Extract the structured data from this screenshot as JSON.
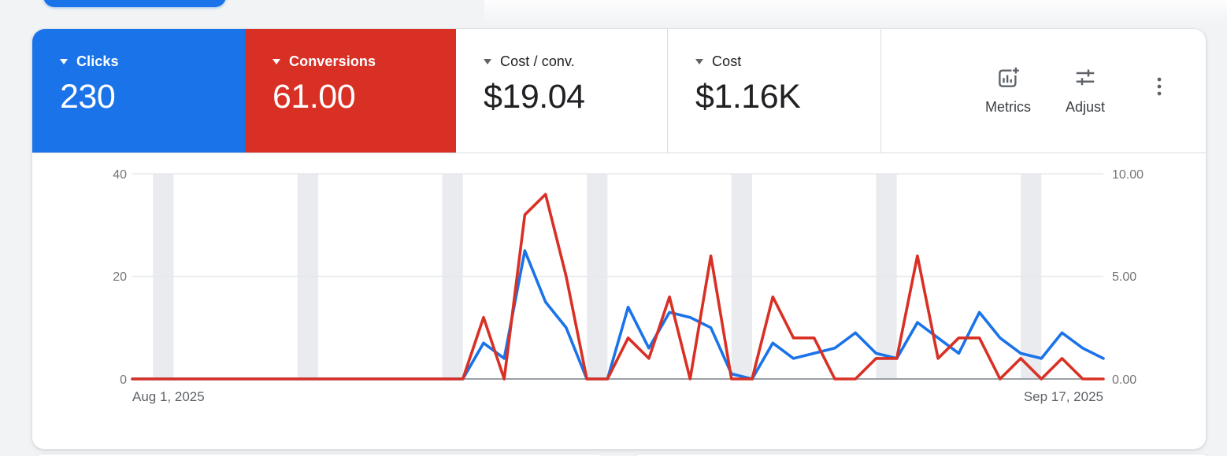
{
  "colors": {
    "accent_blue": "#1a73e8",
    "accent_red": "#d93025",
    "text_dark": "#202124",
    "text_gray": "#5f6368",
    "divider": "#dadce0",
    "gridline": "#e6e8ea",
    "axis_line": "#9aa0a6",
    "weekend_band": "#e9ebee",
    "page_bg": "#f1f3f4"
  },
  "metric_cards": [
    {
      "label": "Clicks",
      "value": "230",
      "bg": "#1a73e8",
      "text": "#ffffff"
    },
    {
      "label": "Conversions",
      "value": "61.00",
      "bg": "#d93025",
      "text": "#ffffff"
    },
    {
      "label": "Cost / conv.",
      "value": "$19.04",
      "bg": "#ffffff",
      "text": "#202124"
    },
    {
      "label": "Cost",
      "value": "$1.16K",
      "bg": "#ffffff",
      "text": "#202124"
    }
  ],
  "toolbar": {
    "metrics_label": "Metrics",
    "adjust_label": "Adjust",
    "more_icon": "kebab-vertical"
  },
  "chart_data": {
    "type": "line",
    "title": "",
    "xlabel": "",
    "ylabel_left": "Clicks",
    "ylabel_right": "Conversions",
    "x_start_label": "Aug 1, 2025",
    "x_end_label": "Sep 17, 2025",
    "left_axis": {
      "ticks": [
        "0",
        "20",
        "40"
      ],
      "range": [
        0,
        40
      ]
    },
    "right_axis": {
      "ticks": [
        "0.00",
        "5.00",
        "10.00"
      ],
      "range": [
        0,
        10
      ]
    },
    "grid": true,
    "legend_position": "none",
    "weekend_band_start_indices": [
      1,
      8,
      15,
      22,
      29,
      36,
      43
    ],
    "categories": [
      "Aug 1",
      "Aug 2",
      "Aug 3",
      "Aug 4",
      "Aug 5",
      "Aug 6",
      "Aug 7",
      "Aug 8",
      "Aug 9",
      "Aug 10",
      "Aug 11",
      "Aug 12",
      "Aug 13",
      "Aug 14",
      "Aug 15",
      "Aug 16",
      "Aug 17",
      "Aug 18",
      "Aug 19",
      "Aug 20",
      "Aug 21",
      "Aug 22",
      "Aug 23",
      "Aug 24",
      "Aug 25",
      "Aug 26",
      "Aug 27",
      "Aug 28",
      "Aug 29",
      "Aug 30",
      "Aug 31",
      "Sep 1",
      "Sep 2",
      "Sep 3",
      "Sep 4",
      "Sep 5",
      "Sep 6",
      "Sep 7",
      "Sep 8",
      "Sep 9",
      "Sep 10",
      "Sep 11",
      "Sep 12",
      "Sep 13",
      "Sep 14",
      "Sep 15",
      "Sep 16",
      "Sep 17"
    ],
    "series": [
      {
        "name": "Clicks",
        "axis": "left",
        "color": "#1a73e8",
        "values": [
          0,
          0,
          0,
          0,
          0,
          0,
          0,
          0,
          0,
          0,
          0,
          0,
          0,
          0,
          0,
          0,
          0,
          7,
          4,
          25,
          15,
          10,
          0,
          0,
          14,
          6,
          13,
          12,
          10,
          1,
          0,
          7,
          4,
          5,
          6,
          9,
          5,
          4,
          11,
          8,
          5,
          13,
          8,
          5,
          4,
          9,
          6,
          4
        ]
      },
      {
        "name": "Conversions",
        "axis": "right",
        "color": "#d93025",
        "values": [
          0,
          0,
          0,
          0,
          0,
          0,
          0,
          0,
          0,
          0,
          0,
          0,
          0,
          0,
          0,
          0,
          0,
          3,
          0,
          8,
          9,
          5,
          0,
          0,
          2,
          1,
          4,
          0,
          6,
          0,
          0,
          4,
          2,
          2,
          0,
          0,
          1,
          1,
          6,
          1,
          2,
          2,
          0,
          1,
          0,
          1,
          0,
          0
        ]
      }
    ]
  }
}
